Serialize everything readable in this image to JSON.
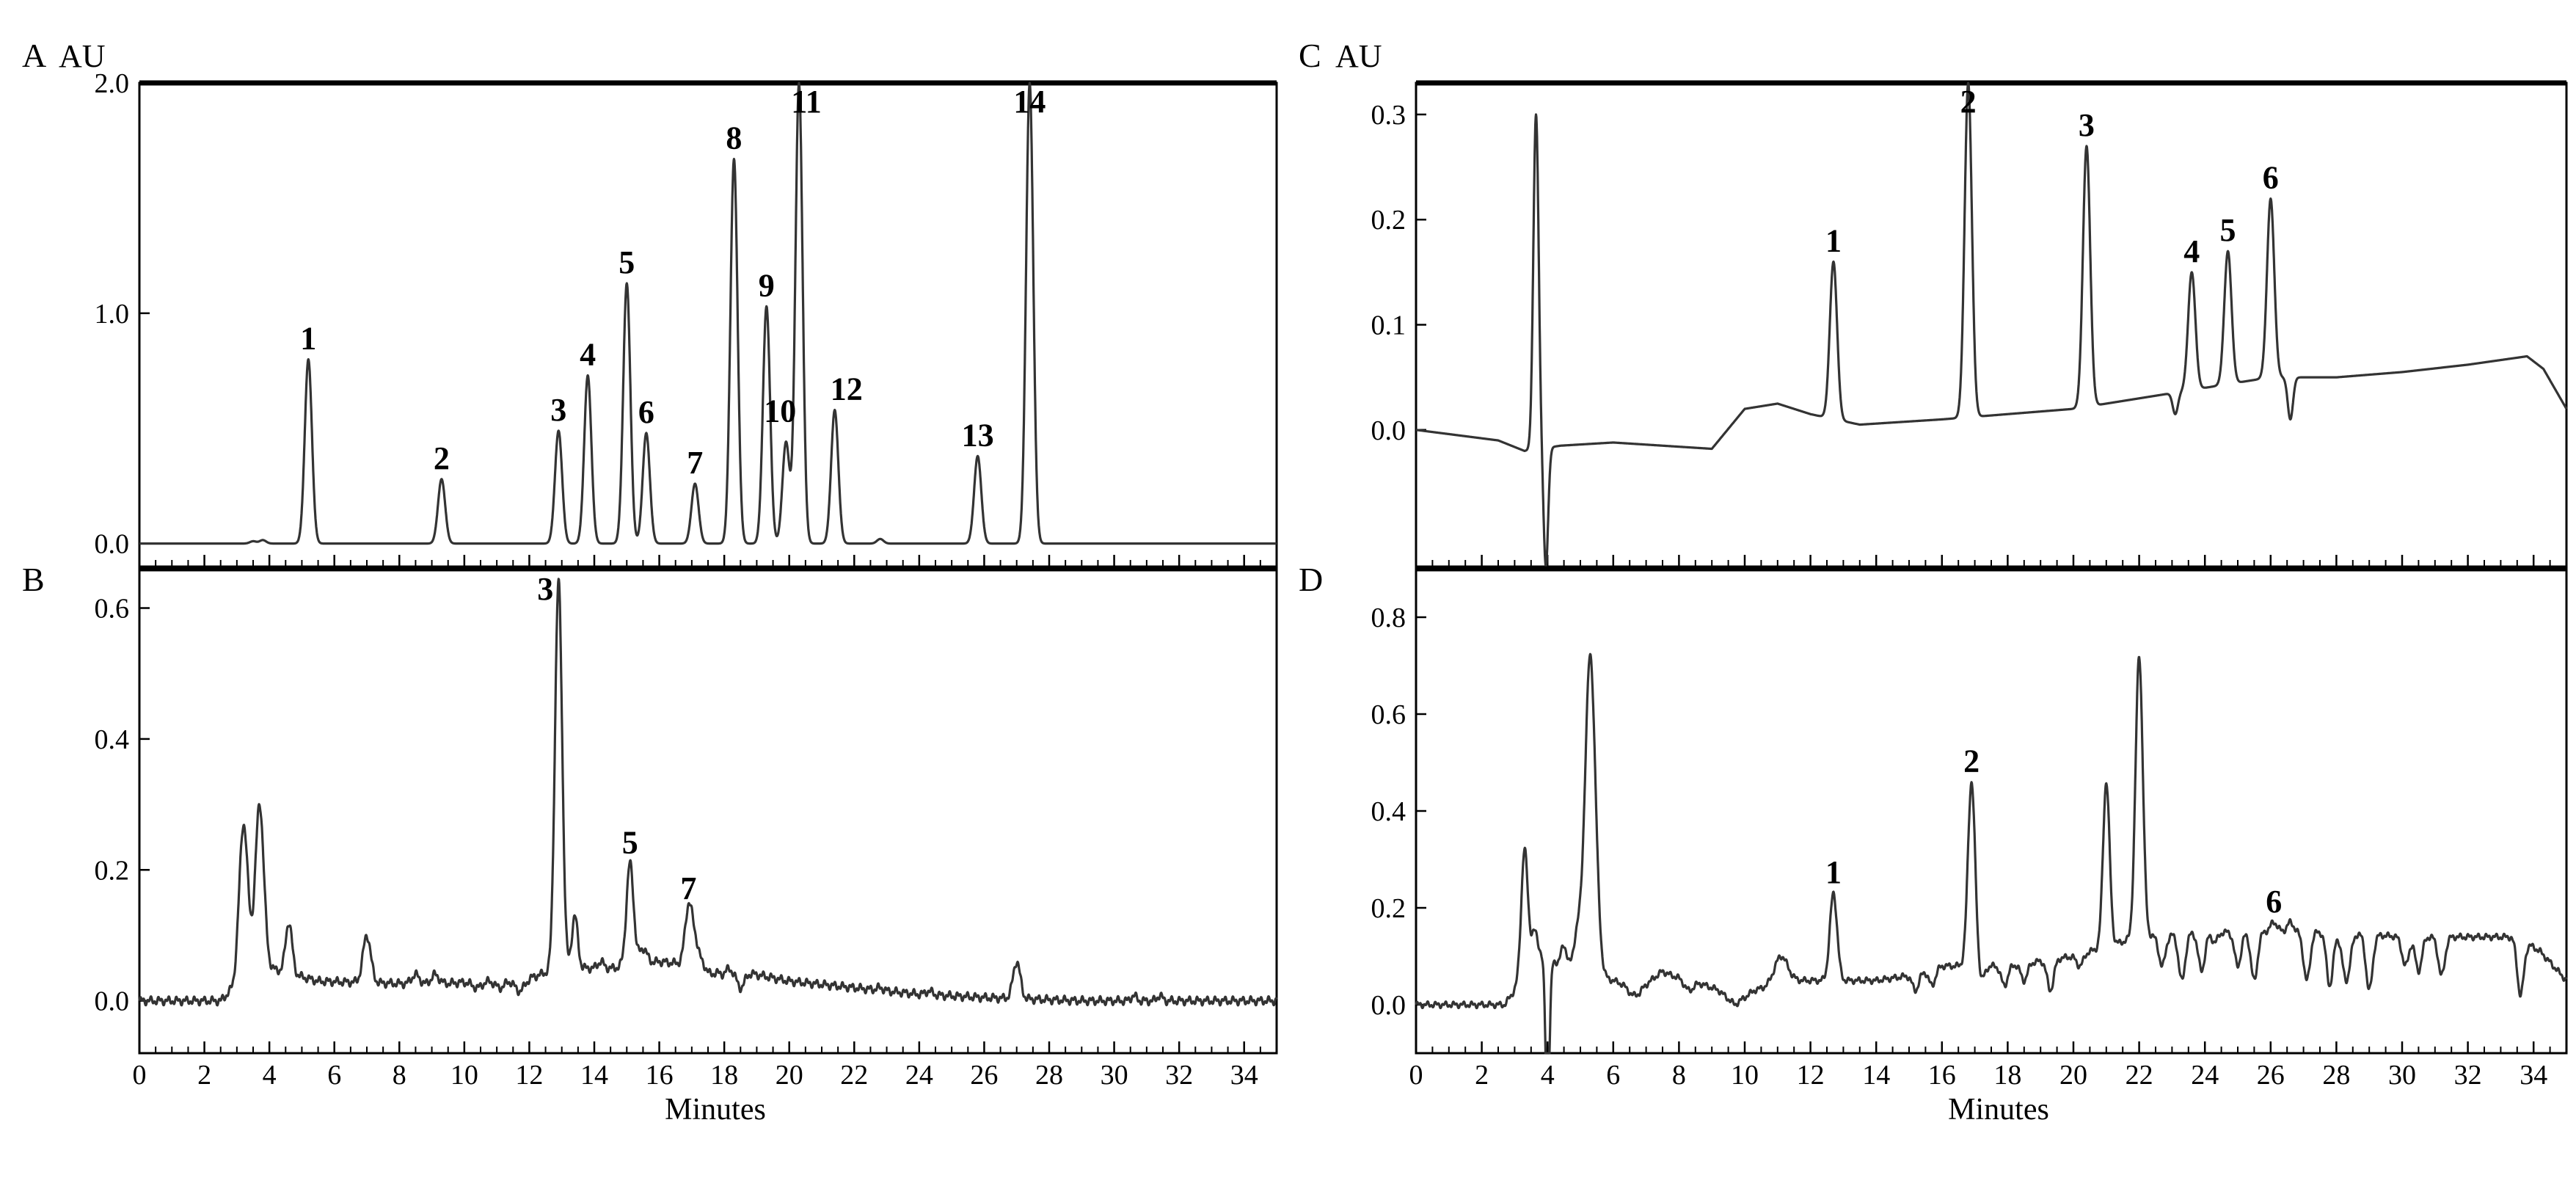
{
  "chart_data": [
    {
      "type": "line",
      "panel": "A",
      "ylabel": "AU",
      "xlabel": "",
      "xlim": [
        0,
        35
      ],
      "ylim": [
        -0.1,
        2.0
      ],
      "x_ticks": [
        0,
        2,
        4,
        6,
        8,
        10,
        12,
        14,
        16,
        18,
        20,
        22,
        24,
        26,
        28,
        30,
        32,
        34
      ],
      "y_ticks": [
        "0.0",
        "1.0",
        "2.0"
      ],
      "peaks": [
        {
          "label": "1",
          "x": 5.2,
          "y": 0.8
        },
        {
          "label": "2",
          "x": 9.3,
          "y": 0.28
        },
        {
          "label": "3",
          "x": 12.9,
          "y": 0.49
        },
        {
          "label": "4",
          "x": 13.8,
          "y": 0.73
        },
        {
          "label": "5",
          "x": 15.0,
          "y": 1.13
        },
        {
          "label": "6",
          "x": 15.6,
          "y": 0.48
        },
        {
          "label": "7",
          "x": 17.1,
          "y": 0.26
        },
        {
          "label": "8",
          "x": 18.3,
          "y": 1.67
        },
        {
          "label": "9",
          "x": 19.3,
          "y": 1.03
        },
        {
          "label": "10",
          "x": 19.9,
          "y": 0.44
        },
        {
          "label": "11",
          "x": 20.3,
          "y": 2.0
        },
        {
          "label": "12",
          "x": 21.4,
          "y": 0.58
        },
        {
          "label": "13",
          "x": 25.8,
          "y": 0.38
        },
        {
          "label": "14",
          "x": 27.4,
          "y": 2.0
        }
      ],
      "minor_peaks": [
        {
          "x": 3.5,
          "y": 0.01,
          "w": 0.1
        },
        {
          "x": 3.8,
          "y": 0.015,
          "w": 0.1
        },
        {
          "x": 22.8,
          "y": 0.02,
          "w": 0.1
        }
      ],
      "baseline": [
        [
          0,
          0
        ],
        [
          35,
          0
        ]
      ]
    },
    {
      "type": "line",
      "panel": "B",
      "ylabel": "",
      "xlabel": "Minutes",
      "xlim": [
        0,
        35
      ],
      "ylim": [
        -0.08,
        0.66
      ],
      "x_ticks": [
        0,
        2,
        4,
        6,
        8,
        10,
        12,
        14,
        16,
        18,
        20,
        22,
        24,
        26,
        28,
        30,
        32,
        34
      ],
      "y_ticks": [
        "0.0",
        "0.2",
        "0.4",
        "0.6"
      ],
      "peaks": [
        {
          "label": "3",
          "x": 12.9,
          "y": 0.64
        },
        {
          "label": "5",
          "x": 15.1,
          "y": 0.21
        },
        {
          "label": "7",
          "x": 16.9,
          "y": 0.14
        }
      ],
      "minor_peaks": [
        {
          "x": 3.2,
          "y": 0.27,
          "w": 0.13
        },
        {
          "x": 3.7,
          "y": 0.3,
          "w": 0.13
        },
        {
          "x": 4.6,
          "y": 0.12,
          "w": 0.1
        },
        {
          "x": 7.0,
          "y": 0.1,
          "w": 0.12
        },
        {
          "x": 8.5,
          "y": 0.04,
          "w": 0.12
        },
        {
          "x": 9.1,
          "y": 0.04,
          "w": 0.12
        },
        {
          "x": 10.4,
          "y": 0.02,
          "w": 0.15
        },
        {
          "x": 11.1,
          "y": 0.02,
          "w": 0.15
        },
        {
          "x": 11.7,
          "y": 0.015,
          "w": 0.15
        },
        {
          "x": 13.4,
          "y": 0.13,
          "w": 0.09
        },
        {
          "x": 13.8,
          "y": 0.05,
          "w": 0.09
        },
        {
          "x": 14.2,
          "y": 0.06,
          "w": 0.09
        },
        {
          "x": 14.6,
          "y": 0.05,
          "w": 0.09
        },
        {
          "x": 15.5,
          "y": 0.08,
          "w": 0.12
        },
        {
          "x": 17.1,
          "y": 0.09,
          "w": 0.12
        },
        {
          "x": 17.6,
          "y": 0.04,
          "w": 0.1
        },
        {
          "x": 17.9,
          "y": 0.04,
          "w": 0.1
        },
        {
          "x": 18.5,
          "y": 0.02,
          "w": 0.12
        },
        {
          "x": 22.8,
          "y": 0.02,
          "w": 0.1
        },
        {
          "x": 24.3,
          "y": 0.015,
          "w": 0.1
        },
        {
          "x": 27.0,
          "y": 0.06,
          "w": 0.11
        },
        {
          "x": 30.6,
          "y": 0.008,
          "w": 0.08
        },
        {
          "x": 31.4,
          "y": 0.008,
          "w": 0.08
        }
      ],
      "baseline": [
        [
          0,
          0
        ],
        [
          2.5,
          0
        ],
        [
          2.9,
          0.02
        ],
        [
          3.3,
          0.06
        ],
        [
          4.0,
          0.05
        ],
        [
          5.5,
          0.03
        ],
        [
          9.0,
          0.025
        ],
        [
          12.0,
          0.035
        ],
        [
          13.0,
          0.05
        ],
        [
          14.5,
          0.05
        ],
        [
          16.0,
          0.06
        ],
        [
          18.0,
          0.05
        ],
        [
          20.0,
          0.03
        ],
        [
          22.0,
          0.02
        ],
        [
          24.0,
          0.01
        ],
        [
          26.0,
          0.005
        ],
        [
          29.0,
          0.0
        ],
        [
          35,
          0.0
        ]
      ]
    },
    {
      "type": "line",
      "panel": "C",
      "ylabel": "AU",
      "xlabel": "",
      "xlim": [
        0,
        35
      ],
      "ylim": [
        -0.13,
        0.33
      ],
      "x_ticks": [
        0,
        2,
        4,
        6,
        8,
        10,
        12,
        14,
        16,
        18,
        20,
        22,
        24,
        26,
        28,
        30,
        32,
        34
      ],
      "y_ticks": [
        "0.0",
        "0.1",
        "0.2",
        "0.3"
      ],
      "peaks": [
        {
          "label": "1",
          "x": 12.7,
          "y": 0.16
        },
        {
          "label": "2",
          "x": 16.8,
          "y": 0.33
        },
        {
          "label": "3",
          "x": 20.4,
          "y": 0.27
        },
        {
          "label": "4",
          "x": 23.6,
          "y": 0.15
        },
        {
          "label": "5",
          "x": 24.7,
          "y": 0.17
        },
        {
          "label": "6",
          "x": 26.0,
          "y": 0.22
        }
      ],
      "minor_peaks": [
        {
          "x": 3.65,
          "y": 0.3,
          "w": 0.08
        },
        {
          "x": 3.95,
          "y": -0.13,
          "w": 0.07
        },
        {
          "x": 23.1,
          "y": 0.015,
          "w": 0.08
        },
        {
          "x": 26.6,
          "y": 0.01,
          "w": 0.08
        }
      ],
      "baseline": [
        [
          0,
          0.0
        ],
        [
          2.5,
          -0.01
        ],
        [
          3.3,
          -0.02
        ],
        [
          4.4,
          -0.015
        ],
        [
          6.0,
          -0.012
        ],
        [
          9.0,
          -0.018
        ],
        [
          10.0,
          0.02
        ],
        [
          11.0,
          0.025
        ],
        [
          12.0,
          0.015
        ],
        [
          13.5,
          0.005
        ],
        [
          16.0,
          0.01
        ],
        [
          20.0,
          0.02
        ],
        [
          22.0,
          0.03
        ],
        [
          24.0,
          0.04
        ],
        [
          26.0,
          0.05
        ],
        [
          28.0,
          0.05
        ],
        [
          30.0,
          0.055
        ],
        [
          32.0,
          0.062
        ],
        [
          33.8,
          0.07
        ],
        [
          34.3,
          0.058
        ],
        [
          35,
          0.02
        ]
      ]
    },
    {
      "type": "line",
      "panel": "D",
      "ylabel": "",
      "xlabel": "Minutes",
      "xlim": [
        0,
        35
      ],
      "ylim": [
        -0.1,
        0.9
      ],
      "x_ticks": [
        0,
        2,
        4,
        6,
        8,
        10,
        12,
        14,
        16,
        18,
        20,
        22,
        24,
        26,
        28,
        30,
        32,
        34
      ],
      "y_ticks": [
        "0.0",
        "0.2",
        "0.4",
        "0.6",
        "0.8"
      ],
      "peaks": [
        {
          "label": "1",
          "x": 12.7,
          "y": 0.23
        },
        {
          "label": "2",
          "x": 16.9,
          "y": 0.46
        },
        {
          "label": "6",
          "x": 26.1,
          "y": 0.17
        }
      ],
      "minor_peaks": [
        {
          "x": 3.3,
          "y": 0.32,
          "w": 0.1
        },
        {
          "x": 3.6,
          "y": 0.15,
          "w": 0.1
        },
        {
          "x": 4.0,
          "y": -0.23,
          "w": 0.06
        },
        {
          "x": 4.5,
          "y": 0.12,
          "w": 0.1
        },
        {
          "x": 4.9,
          "y": 0.14,
          "w": 0.1
        },
        {
          "x": 5.3,
          "y": 0.72,
          "w": 0.16
        },
        {
          "x": 6.6,
          "y": 0.02,
          "w": 0.15
        },
        {
          "x": 7.8,
          "y": 0.06,
          "w": 0.18
        },
        {
          "x": 8.3,
          "y": 0.03,
          "w": 0.15
        },
        {
          "x": 8.8,
          "y": 0.04,
          "w": 0.15
        },
        {
          "x": 11.1,
          "y": 0.1,
          "w": 0.2
        },
        {
          "x": 15.2,
          "y": 0.03,
          "w": 0.1
        },
        {
          "x": 15.7,
          "y": 0.04,
          "w": 0.1
        },
        {
          "x": 17.2,
          "y": 0.05,
          "w": 0.1
        },
        {
          "x": 17.9,
          "y": 0.04,
          "w": 0.1
        },
        {
          "x": 18.5,
          "y": 0.05,
          "w": 0.1
        },
        {
          "x": 19.3,
          "y": 0.03,
          "w": 0.1
        },
        {
          "x": 20.2,
          "y": 0.08,
          "w": 0.1
        },
        {
          "x": 21.0,
          "y": 0.46,
          "w": 0.1
        },
        {
          "x": 22.0,
          "y": 0.72,
          "w": 0.11
        },
        {
          "x": 22.7,
          "y": 0.08,
          "w": 0.1
        },
        {
          "x": 23.3,
          "y": 0.05,
          "w": 0.1
        },
        {
          "x": 23.9,
          "y": 0.07,
          "w": 0.1
        },
        {
          "x": 24.3,
          "y": 0.13,
          "w": 0.1
        },
        {
          "x": 25.0,
          "y": 0.08,
          "w": 0.1
        },
        {
          "x": 25.5,
          "y": 0.05,
          "w": 0.1
        },
        {
          "x": 26.6,
          "y": 0.17,
          "w": 0.1
        },
        {
          "x": 27.1,
          "y": 0.05,
          "w": 0.1
        },
        {
          "x": 27.8,
          "y": 0.04,
          "w": 0.1
        },
        {
          "x": 28.3,
          "y": 0.05,
          "w": 0.12
        },
        {
          "x": 29.0,
          "y": 0.03,
          "w": 0.1
        },
        {
          "x": 30.1,
          "y": 0.08,
          "w": 0.1
        },
        {
          "x": 30.5,
          "y": 0.07,
          "w": 0.1
        },
        {
          "x": 31.2,
          "y": 0.06,
          "w": 0.1
        },
        {
          "x": 33.6,
          "y": 0.02,
          "w": 0.1
        }
      ],
      "baseline": [
        [
          0,
          0.0
        ],
        [
          2.7,
          0.0
        ],
        [
          3.1,
          0.04
        ],
        [
          3.8,
          0.1
        ],
        [
          4.4,
          0.08
        ],
        [
          6.0,
          0.05
        ],
        [
          6.8,
          0.03
        ],
        [
          7.5,
          0.07
        ],
        [
          8.5,
          0.05
        ],
        [
          9.2,
          0.03
        ],
        [
          9.7,
          0.0
        ],
        [
          10.3,
          0.03
        ],
        [
          11.5,
          0.05
        ],
        [
          13.0,
          0.05
        ],
        [
          14.0,
          0.05
        ],
        [
          15.0,
          0.06
        ],
        [
          16.0,
          0.08
        ],
        [
          18.0,
          0.08
        ],
        [
          20.0,
          0.1
        ],
        [
          22.0,
          0.14
        ],
        [
          24.0,
          0.15
        ],
        [
          26.0,
          0.15
        ],
        [
          28.0,
          0.15
        ],
        [
          30.0,
          0.14
        ],
        [
          32.0,
          0.14
        ],
        [
          33.5,
          0.14
        ],
        [
          34.2,
          0.11
        ],
        [
          35,
          0.05
        ]
      ]
    }
  ]
}
